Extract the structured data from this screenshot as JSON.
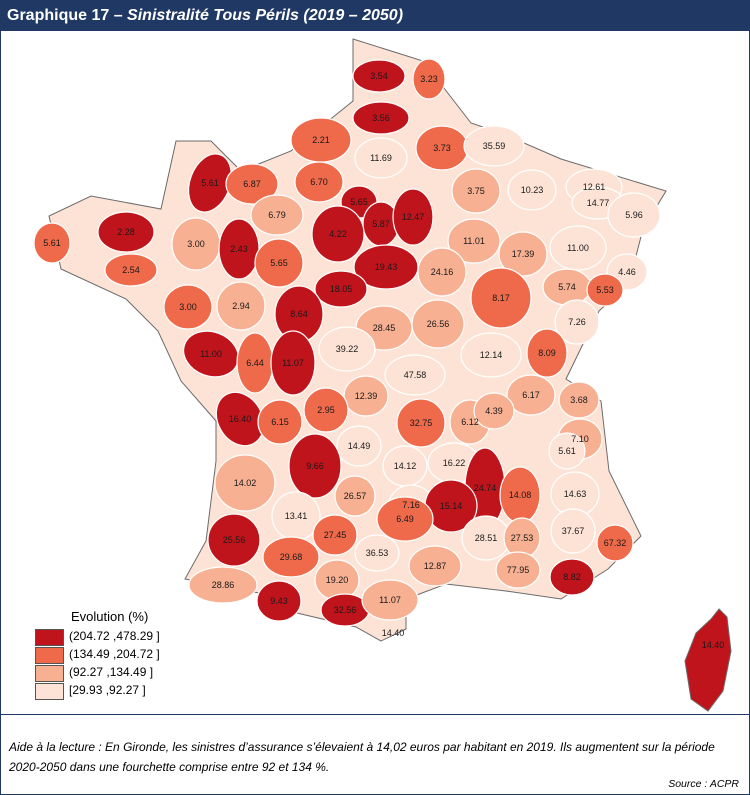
{
  "title": {
    "prefix": "Graphique 17 – ",
    "main": "Sinistralité Tous Périls (2019 – 2050)"
  },
  "legend": {
    "title": "Evolution (%)",
    "classes": [
      {
        "label": "(204.72 ,478.29 ]",
        "color": "#c0141c"
      },
      {
        "label": "(134.49 ,204.72 ]",
        "color": "#ee6a4a"
      },
      {
        "label": "(92.27   ,134.49 ]",
        "color": "#f7b091"
      },
      {
        "label": "[29.93   ,92.27   ]",
        "color": "#fde3d6"
      }
    ]
  },
  "map_labels": [
    {
      "text": "3.54",
      "cls": 0
    },
    {
      "text": "3.23",
      "cls": 1
    },
    {
      "text": "3.56",
      "cls": 0
    },
    {
      "text": "2.21",
      "cls": 1
    },
    {
      "text": "11.69",
      "cls": 3
    },
    {
      "text": "3.73",
      "cls": 1
    },
    {
      "text": "35.59",
      "cls": 3
    },
    {
      "text": "5.61",
      "cls": 0
    },
    {
      "text": "6.87",
      "cls": 1
    },
    {
      "text": "6.70",
      "cls": 1
    },
    {
      "text": "3.75",
      "cls": 2
    },
    {
      "text": "10.23",
      "cls": 3
    },
    {
      "text": "12.61",
      "cls": 3
    },
    {
      "text": "14.77",
      "cls": 3
    },
    {
      "text": "5.96",
      "cls": 3
    },
    {
      "text": "2.28",
      "cls": 0
    },
    {
      "text": "6.79",
      "cls": 2
    },
    {
      "text": "5.65",
      "cls": 0
    },
    {
      "text": "5.87",
      "cls": 0
    },
    {
      "text": "12.47",
      "cls": 0
    },
    {
      "text": "4.22",
      "cls": 0
    },
    {
      "text": "11.01",
      "cls": 2
    },
    {
      "text": "17.39",
      "cls": 2
    },
    {
      "text": "11.00",
      "cls": 3
    },
    {
      "text": "4.46",
      "cls": 3
    },
    {
      "text": "5.61",
      "cls": 1
    },
    {
      "text": "3.00",
      "cls": 2
    },
    {
      "text": "2.54",
      "cls": 1
    },
    {
      "text": "2.43",
      "cls": 0
    },
    {
      "text": "5.65",
      "cls": 1
    },
    {
      "text": "19.43",
      "cls": 0
    },
    {
      "text": "24.16",
      "cls": 2
    },
    {
      "text": "5.74",
      "cls": 2
    },
    {
      "text": "5.53",
      "cls": 1
    },
    {
      "text": "3.00",
      "cls": 1
    },
    {
      "text": "2.94",
      "cls": 2
    },
    {
      "text": "18.05",
      "cls": 0
    },
    {
      "text": "8.17",
      "cls": 1
    },
    {
      "text": "8.64",
      "cls": 0
    },
    {
      "text": "28.45",
      "cls": 2
    },
    {
      "text": "26.56",
      "cls": 2
    },
    {
      "text": "7.26",
      "cls": 3
    },
    {
      "text": "11.00",
      "cls": 0
    },
    {
      "text": "6.44",
      "cls": 1
    },
    {
      "text": "11.07",
      "cls": 0
    },
    {
      "text": "39.22",
      "cls": 3
    },
    {
      "text": "12.14",
      "cls": 3
    },
    {
      "text": "47.58",
      "cls": 3
    },
    {
      "text": "8.09",
      "cls": 1
    },
    {
      "text": "12.39",
      "cls": 2
    },
    {
      "text": "6.17",
      "cls": 2
    },
    {
      "text": "3.68",
      "cls": 2
    },
    {
      "text": "16.40",
      "cls": 0
    },
    {
      "text": "6.15",
      "cls": 1
    },
    {
      "text": "2.95",
      "cls": 1
    },
    {
      "text": "32.75",
      "cls": 1
    },
    {
      "text": "6.12",
      "cls": 2
    },
    {
      "text": "4.39",
      "cls": 2
    },
    {
      "text": "7.10",
      "cls": 2
    },
    {
      "text": "14.49",
      "cls": 3
    },
    {
      "text": "5.61",
      "cls": 3
    },
    {
      "text": "14.12",
      "cls": 3
    },
    {
      "text": "16.22",
      "cls": 3
    },
    {
      "text": "9.66",
      "cls": 0
    },
    {
      "text": "14.02",
      "cls": 2
    },
    {
      "text": "24.74",
      "cls": 0
    },
    {
      "text": "14.08",
      "cls": 1
    },
    {
      "text": "14.63",
      "cls": 3
    },
    {
      "text": "26.57",
      "cls": 2
    },
    {
      "text": "7.16",
      "cls": 3
    },
    {
      "text": "15.14",
      "cls": 0
    },
    {
      "text": "13.41",
      "cls": 3
    },
    {
      "text": "6.49",
      "cls": 1
    },
    {
      "text": "25.56",
      "cls": 0
    },
    {
      "text": "27.45",
      "cls": 1
    },
    {
      "text": "28.51",
      "cls": 3
    },
    {
      "text": "27.53",
      "cls": 2
    },
    {
      "text": "37.67",
      "cls": 3
    },
    {
      "text": "67.32",
      "cls": 1
    },
    {
      "text": "29.68",
      "cls": 1
    },
    {
      "text": "36.53",
      "cls": 3
    },
    {
      "text": "12.87",
      "cls": 2
    },
    {
      "text": "77.95",
      "cls": 2
    },
    {
      "text": "8.82",
      "cls": 0
    },
    {
      "text": "28.86",
      "cls": 2
    },
    {
      "text": "9.43",
      "cls": 0
    },
    {
      "text": "19.20",
      "cls": 2
    },
    {
      "text": "32.56",
      "cls": 0
    },
    {
      "text": "11.07",
      "cls": 2
    },
    {
      "text": "14.40",
      "cls": 0
    },
    {
      "text": "14.40",
      "cls": 0
    }
  ],
  "note": "Aide à la lecture : En Gironde, les sinistres d’assurance s’élevaient à 14,02 euros par habitant en 2019. Ils augmentent sur la période 2020-2050 dans une fourchette comprise entre 92 et 134 %.",
  "source": "Source : ACPR"
}
